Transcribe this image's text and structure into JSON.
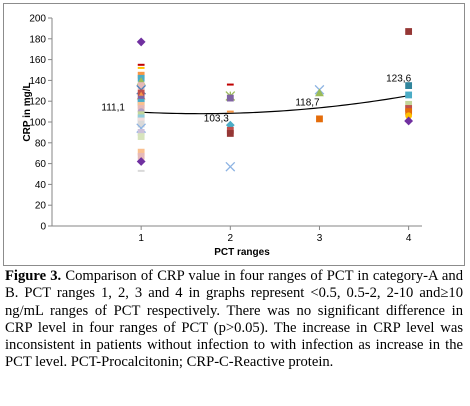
{
  "chart_data": {
    "type": "scatter",
    "ylabel": "CRP in mg/L",
    "xlabel": "PCT ranges",
    "ylim": [
      0,
      200
    ],
    "yticks": [
      0,
      20,
      40,
      60,
      80,
      100,
      120,
      140,
      160,
      180,
      200
    ],
    "xlim": [
      0,
      4.15
    ],
    "xticks": [
      1,
      2,
      3,
      4
    ],
    "grid": false,
    "legend": "none",
    "trendline": {
      "type": "polynomial",
      "points": [
        [
          1,
          111.1
        ],
        [
          2,
          103.3
        ],
        [
          3,
          118.7
        ],
        [
          4,
          123.6
        ]
      ],
      "color": "#000000"
    },
    "annotations": [
      {
        "text": "111,1",
        "x": 1,
        "value": 111.1
      },
      {
        "text": "103,3",
        "x": 2,
        "value": 103.3
      },
      {
        "text": "118,7",
        "x": 3,
        "value": 118.7
      },
      {
        "text": "123,6",
        "x": 4,
        "value": 123.6
      }
    ],
    "points": [
      {
        "x": 1,
        "y": 177,
        "marker": "diamond",
        "color": "#7030a0"
      },
      {
        "x": 1,
        "y": 155,
        "marker": "dash",
        "color": "#c00000"
      },
      {
        "x": 1,
        "y": 152,
        "marker": "dash",
        "color": "#ffc000"
      },
      {
        "x": 1,
        "y": 145,
        "marker": "square",
        "color": "#f79646"
      },
      {
        "x": 1,
        "y": 142,
        "marker": "square",
        "color": "#4bacc6"
      },
      {
        "x": 1,
        "y": 139,
        "marker": "triangle",
        "color": "#9bbb59"
      },
      {
        "x": 1,
        "y": 135,
        "marker": "square",
        "color": "#e6b9b8"
      },
      {
        "x": 1,
        "y": 131,
        "marker": "cross",
        "color": "#4f81bd"
      },
      {
        "x": 1,
        "y": 128,
        "marker": "square",
        "color": "#c0504d"
      },
      {
        "x": 1,
        "y": 125,
        "marker": "triangle",
        "color": "#f79646"
      },
      {
        "x": 1,
        "y": 122,
        "marker": "square",
        "color": "#8064a2"
      },
      {
        "x": 1,
        "y": 119,
        "marker": "square",
        "color": "#4bacc6"
      },
      {
        "x": 1,
        "y": 116,
        "marker": "square",
        "color": "#fac090"
      },
      {
        "x": 1,
        "y": 113,
        "marker": "square",
        "color": "#e6b9b8"
      },
      {
        "x": 1,
        "y": 110,
        "marker": "circle",
        "color": "#b3a2c7"
      },
      {
        "x": 1,
        "y": 107,
        "marker": "square",
        "color": "#c3d69b"
      },
      {
        "x": 1,
        "y": 104,
        "marker": "square",
        "color": "#93cddd"
      },
      {
        "x": 1,
        "y": 101,
        "marker": "square",
        "color": "#f2dcdb"
      },
      {
        "x": 1,
        "y": 98,
        "marker": "square",
        "color": "#d9d9d9"
      },
      {
        "x": 1,
        "y": 94,
        "marker": "cross",
        "color": "#8eb4e3"
      },
      {
        "x": 1,
        "y": 90,
        "marker": "square",
        "color": "#ccc1da"
      },
      {
        "x": 1,
        "y": 86,
        "marker": "square",
        "color": "#d7e4bd"
      },
      {
        "x": 1,
        "y": 71,
        "marker": "square",
        "color": "#fac090"
      },
      {
        "x": 1,
        "y": 67,
        "marker": "square",
        "color": "#e6b9b8"
      },
      {
        "x": 1,
        "y": 62,
        "marker": "diamond",
        "color": "#7030a0"
      },
      {
        "x": 1,
        "y": 53,
        "marker": "dash",
        "color": "#d9d9d9"
      },
      {
        "x": 2,
        "y": 136,
        "marker": "dash",
        "color": "#c00000"
      },
      {
        "x": 2,
        "y": 125,
        "marker": "star",
        "color": "#9bbb59"
      },
      {
        "x": 2,
        "y": 123,
        "marker": "square",
        "color": "#8064a2"
      },
      {
        "x": 2,
        "y": 110,
        "marker": "dash",
        "color": "#f79646"
      },
      {
        "x": 2,
        "y": 97,
        "marker": "diamond",
        "color": "#4bacc6"
      },
      {
        "x": 2,
        "y": 92,
        "marker": "square",
        "color": "#c0504d"
      },
      {
        "x": 2,
        "y": 89,
        "marker": "square",
        "color": "#953735"
      },
      {
        "x": 2,
        "y": 57,
        "marker": "cross",
        "color": "#8eb4e3"
      },
      {
        "x": 3,
        "y": 131,
        "marker": "cross",
        "color": "#8eb4e3"
      },
      {
        "x": 3,
        "y": 128,
        "marker": "triangle",
        "color": "#9bbb59"
      },
      {
        "x": 3,
        "y": 103,
        "marker": "square",
        "color": "#e46c0a"
      },
      {
        "x": 4,
        "y": 187,
        "marker": "square",
        "color": "#953735"
      },
      {
        "x": 4,
        "y": 135,
        "marker": "square",
        "color": "#31859c"
      },
      {
        "x": 4,
        "y": 126,
        "marker": "square",
        "color": "#4bacc6"
      },
      {
        "x": 4,
        "y": 117,
        "marker": "square",
        "color": "#c3d69b"
      },
      {
        "x": 4,
        "y": 113,
        "marker": "square",
        "color": "#c0504d"
      },
      {
        "x": 4,
        "y": 110,
        "marker": "square",
        "color": "#e46c0a"
      },
      {
        "x": 4,
        "y": 106,
        "marker": "circle",
        "color": "#ffc000"
      },
      {
        "x": 4,
        "y": 101,
        "marker": "diamond",
        "color": "#7030a0"
      }
    ]
  },
  "caption": {
    "label": "Figure 3.",
    "text": " Comparison of CRP value in four ranges of PCT in category-A and B. PCT ranges 1, 2, 3 and 4 in graphs represent <0.5, 0.5-2, 2-10 and≥10 ng/mL ranges of PCT respectively. There was no significant difference in CRP level in four ranges of PCT (p>0.05). The increase in CRP level was inconsistent in patients without infection to with infection as increase in the PCT level. PCT-Procalcitonin; CRP-C-Reactive protein."
  }
}
